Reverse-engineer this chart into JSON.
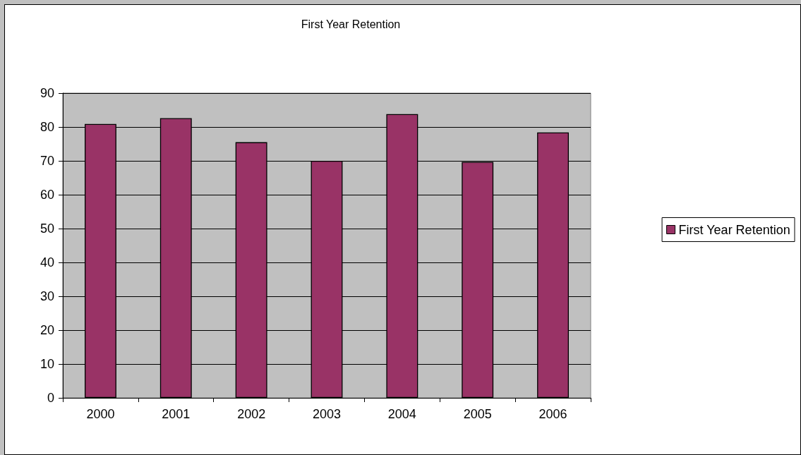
{
  "chart_data": {
    "type": "bar",
    "title": "First Year Retention",
    "categories": [
      "2000",
      "2001",
      "2002",
      "2003",
      "2004",
      "2005",
      "2006"
    ],
    "series": [
      {
        "name": "First Year Retention",
        "color": "#993366",
        "values": [
          80.9,
          82.6,
          75.5,
          70,
          83.8,
          69.7,
          78.4
        ]
      }
    ],
    "ylim": [
      0,
      90
    ],
    "yticks": [
      0,
      10,
      20,
      30,
      40,
      50,
      60,
      70,
      80,
      90
    ],
    "grid": "y",
    "legend": "right"
  }
}
